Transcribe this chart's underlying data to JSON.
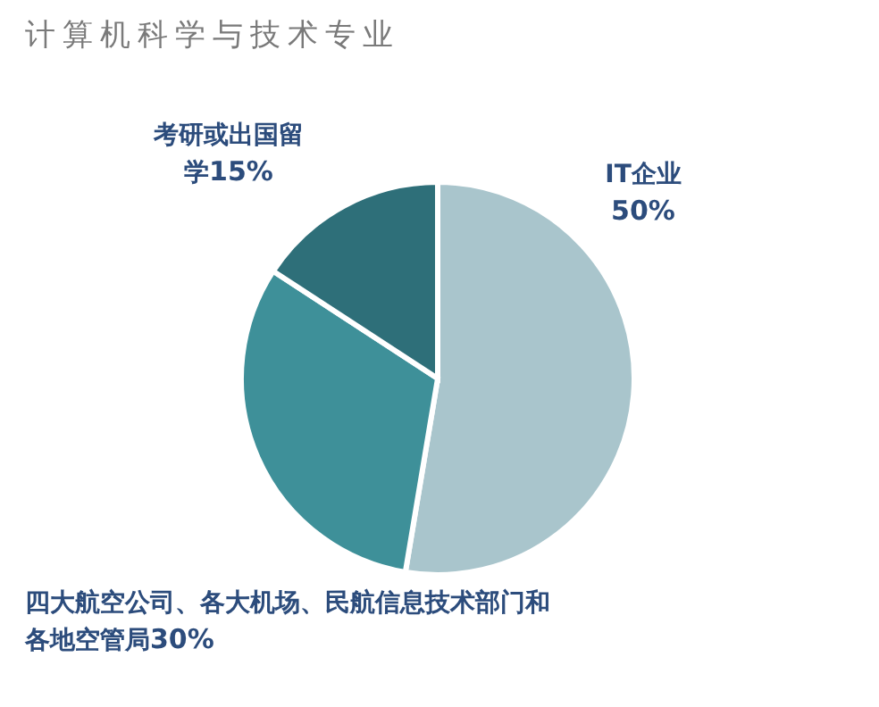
{
  "chart_data": {
    "type": "pie",
    "title": "计算机科学与技术专业",
    "categories": [
      "IT企业",
      "四大航空公司、各大机场、民航信息技术部门和各地空管局",
      "考研或出国留学"
    ],
    "values": [
      50,
      30,
      15
    ],
    "value_labels": [
      "50%",
      "30%",
      "15%"
    ],
    "colors": [
      "#a9c5cc",
      "#3e9099",
      "#2e6f79"
    ]
  }
}
